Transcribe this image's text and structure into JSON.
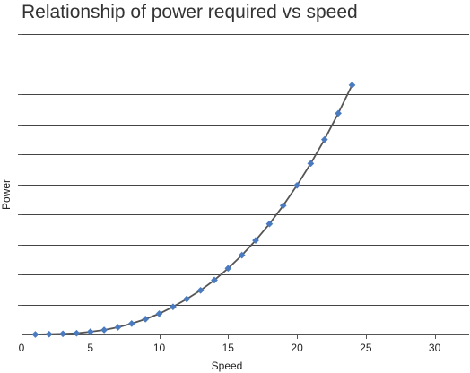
{
  "chart_data": {
    "type": "line",
    "title": "Relationship of power required vs speed",
    "xlabel": "Speed",
    "ylabel": "Power",
    "xlim": [
      0,
      32.5
    ],
    "ylim": [
      0,
      1.0
    ],
    "xticks": [
      0,
      5,
      10,
      15,
      20,
      25,
      30
    ],
    "yticks_count": 10,
    "y_tick_labels_shown": false,
    "grid": "horizontal",
    "legend": "none",
    "series": [
      {
        "x": [
          1,
          2,
          3,
          4,
          5,
          6,
          7,
          8,
          9,
          10,
          11,
          12,
          13,
          14,
          15,
          16,
          17,
          18,
          19,
          20,
          21,
          22,
          23,
          24
        ],
        "values": [
          0.0,
          0.001,
          0.002,
          0.004,
          0.009,
          0.015,
          0.024,
          0.036,
          0.051,
          0.069,
          0.092,
          0.118,
          0.147,
          0.181,
          0.22,
          0.264,
          0.313,
          0.368,
          0.429,
          0.496,
          0.569,
          0.649,
          0.736,
          0.83
        ]
      }
    ],
    "colors": {
      "line": "#555555",
      "marker": "#4a7bc0",
      "grid": "#444444",
      "axis": "#555555",
      "text": "#222222",
      "title": "#333333"
    }
  }
}
